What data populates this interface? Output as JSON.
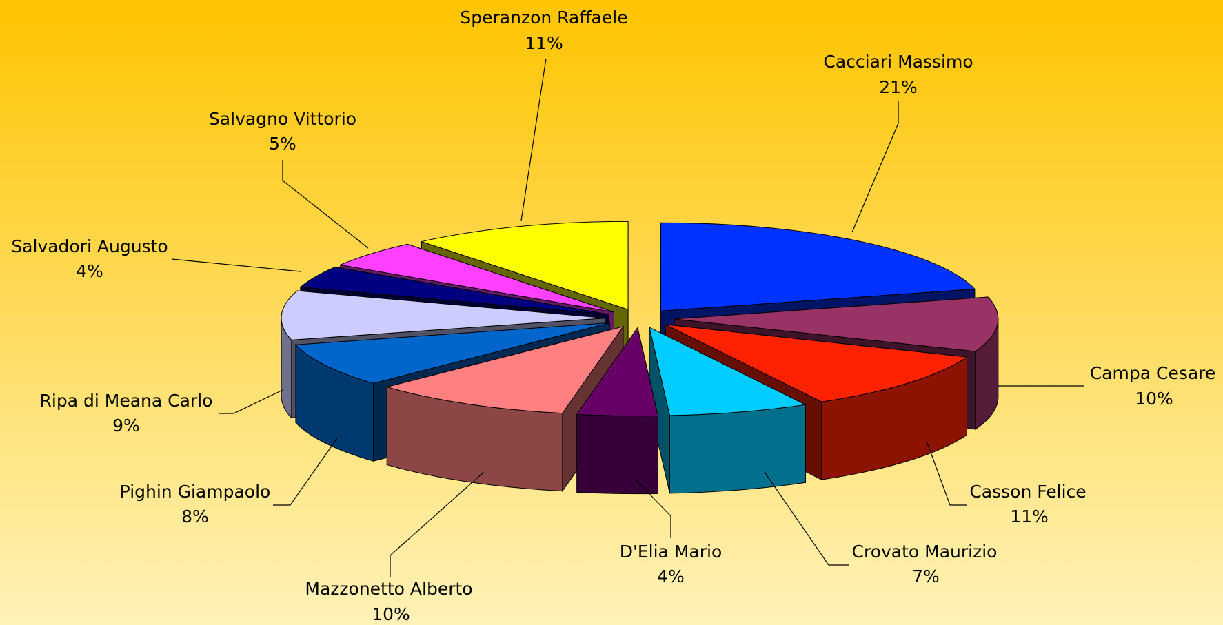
{
  "chart_data": {
    "type": "pie",
    "categories": [
      "Cacciari Massimo",
      "Campa Cesare",
      "Casson Felice",
      "Crovato Maurizio",
      "D'Elia Mario",
      "Mazzonetto Alberto",
      "Pighin Giampaolo",
      "Ripa di Meana Carlo",
      "Salvadori Augusto",
      "Salvagno Vittorio",
      "Speranzon Raffaele"
    ],
    "values": [
      21,
      10,
      11,
      7,
      4,
      10,
      8,
      9,
      4,
      5,
      11
    ],
    "value_labels": [
      "21%",
      "10%",
      "11%",
      "7%",
      "4%",
      "10%",
      "8%",
      "9%",
      "4%",
      "5%",
      "11%"
    ],
    "colors": [
      "#0033ff",
      "#993366",
      "#ff2200",
      "#00ccff",
      "#660066",
      "#ff8080",
      "#0066cc",
      "#ccccff",
      "#000080",
      "#ff40ff",
      "#ffff00"
    ]
  }
}
